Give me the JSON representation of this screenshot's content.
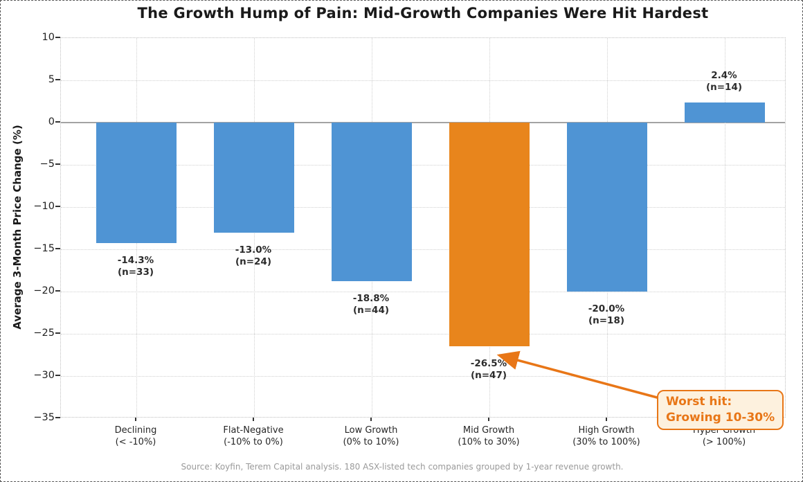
{
  "title": "The Growth Hump of Pain: Mid-Growth Companies Were Hit Hardest",
  "ylabel": "Average 3-Month Price Change (%)",
  "source": "Source: Koyfin, Terem Capital analysis. 180 ASX-listed tech companies grouped by 1-year revenue growth.",
  "annotation": {
    "line1": "Worst hit:",
    "line2": "Growing 10-30%"
  },
  "colors": {
    "bar_blue": "#4f94d4",
    "bar_orange": "#e8851c",
    "annotation_orange": "#e87617",
    "zero_line": "#a3a3a3",
    "grid": "#cfcfcf",
    "title_text": "#1a1a1a",
    "source_text": "#9a9a9a"
  },
  "chart_data": {
    "type": "bar",
    "title": "The Growth Hump of Pain: Mid-Growth Companies Were Hit Hardest",
    "xlabel": "",
    "ylabel": "Average 3-Month Price Change (%)",
    "ylim": [
      -35,
      10
    ],
    "ytick_step": 5,
    "grid": true,
    "categories": [
      "Declining",
      "Flat-Negative",
      "Low Growth",
      "Mid Growth",
      "High Growth",
      "Hyper Growth"
    ],
    "category_ranges": [
      "(< -10%)",
      "(-10% to 0%)",
      "(0% to 10%)",
      "(10% to 30%)",
      "(30% to 100%)",
      "(> 100%)"
    ],
    "values": [
      -14.3,
      -13.0,
      -18.8,
      -26.5,
      -20.0,
      2.4
    ],
    "counts": [
      33,
      24,
      44,
      47,
      18,
      14
    ],
    "value_labels": [
      "-14.3%",
      "-13.0%",
      "-18.8%",
      "-26.5%",
      "-20.0%",
      "2.4%"
    ],
    "count_labels": [
      "(n=33)",
      "(n=24)",
      "(n=44)",
      "(n=47)",
      "(n=18)",
      "(n=14)"
    ],
    "highlight_index": 3,
    "annotation": {
      "text": "Worst hit: Growing 10-30%",
      "points_to": "Mid Growth"
    }
  }
}
